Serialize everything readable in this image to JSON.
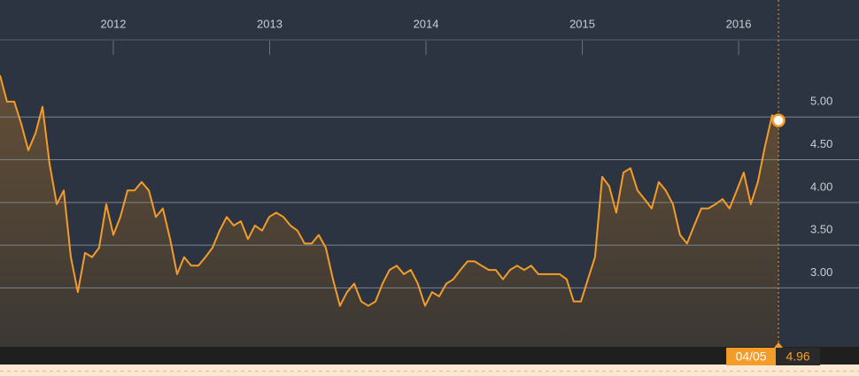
{
  "chart_data": {
    "type": "line",
    "x": [
      2011.275,
      2011.32,
      2011.366,
      2011.411,
      2011.456,
      2011.502,
      2011.547,
      2011.592,
      2011.638,
      2011.683,
      2011.728,
      2011.773,
      2011.819,
      2011.864,
      2011.909,
      2011.955,
      2012.0,
      2012.045,
      2012.091,
      2012.136,
      2012.181,
      2012.227,
      2012.272,
      2012.317,
      2012.363,
      2012.408,
      2012.453,
      2012.498,
      2012.544,
      2012.589,
      2012.634,
      2012.68,
      2012.725,
      2012.77,
      2012.816,
      2012.861,
      2012.906,
      2012.952,
      2012.997,
      2013.042,
      2013.088,
      2013.133,
      2013.178,
      2013.223,
      2013.269,
      2013.314,
      2013.359,
      2013.405,
      2013.45,
      2013.495,
      2013.541,
      2013.586,
      2013.631,
      2013.677,
      2013.722,
      2013.767,
      2013.813,
      2013.858,
      2013.903,
      2013.948,
      2013.994,
      2014.039,
      2014.084,
      2014.13,
      2014.175,
      2014.22,
      2014.266,
      2014.311,
      2014.356,
      2014.402,
      2014.447,
      2014.492,
      2014.538,
      2014.583,
      2014.628,
      2014.673,
      2014.719,
      2014.764,
      2014.809,
      2014.855,
      2014.9,
      2014.945,
      2014.991,
      2015.036,
      2015.081,
      2015.127,
      2015.172,
      2015.217,
      2015.263,
      2015.308,
      2015.353,
      2015.398,
      2015.444,
      2015.489,
      2015.534,
      2015.58,
      2015.625,
      2015.67,
      2015.716,
      2015.761,
      2015.806,
      2015.852,
      2015.897,
      2015.942,
      2015.988,
      2016.033,
      2016.078,
      2016.123,
      2016.169,
      2016.214,
      2016.255
    ],
    "series": [
      {
        "color": "#f39c2a",
        "values": [
          5.49,
          5.18,
          5.18,
          4.92,
          4.61,
          4.81,
          5.12,
          4.45,
          3.98,
          4.14,
          3.36,
          2.95,
          3.41,
          3.36,
          3.47,
          3.98,
          3.62,
          3.83,
          4.14,
          4.14,
          4.24,
          4.14,
          3.83,
          3.93,
          3.57,
          3.16,
          3.36,
          3.26,
          3.26,
          3.36,
          3.47,
          3.67,
          3.83,
          3.73,
          3.78,
          3.57,
          3.73,
          3.67,
          3.83,
          3.88,
          3.83,
          3.73,
          3.67,
          3.52,
          3.52,
          3.62,
          3.47,
          3.1,
          2.79,
          2.95,
          3.05,
          2.84,
          2.79,
          2.84,
          3.05,
          3.21,
          3.26,
          3.16,
          3.21,
          3.05,
          2.79,
          2.95,
          2.9,
          3.05,
          3.1,
          3.21,
          3.31,
          3.31,
          3.26,
          3.21,
          3.21,
          3.1,
          3.21,
          3.26,
          3.21,
          3.26,
          3.16,
          3.16,
          3.16,
          3.16,
          3.1,
          2.84,
          2.84,
          3.1,
          3.36,
          4.3,
          4.19,
          3.88,
          4.35,
          4.4,
          4.14,
          4.04,
          3.93,
          4.24,
          4.14,
          3.98,
          3.62,
          3.52,
          3.73,
          3.93,
          3.93,
          3.98,
          4.04,
          3.93,
          4.14,
          4.35,
          3.98,
          4.24,
          4.66,
          5.02,
          4.96
        ]
      }
    ],
    "xlim": [
      2011.275,
      2016.77
    ],
    "xticks": [
      2012,
      2013,
      2014,
      2015,
      2016
    ],
    "ylim": [
      2.31,
      6.37
    ],
    "yticks": [
      {
        "value": 3,
        "label": "3.00"
      },
      {
        "value": 3.5,
        "label": "3.50"
      },
      {
        "value": 4,
        "label": "4.00"
      },
      {
        "value": 4.5,
        "label": "4.50"
      },
      {
        "value": 5,
        "label": "5.00"
      }
    ],
    "grid": true,
    "cursor": {
      "x": 2016.255,
      "date": "04/05",
      "value": 4.96
    }
  }
}
